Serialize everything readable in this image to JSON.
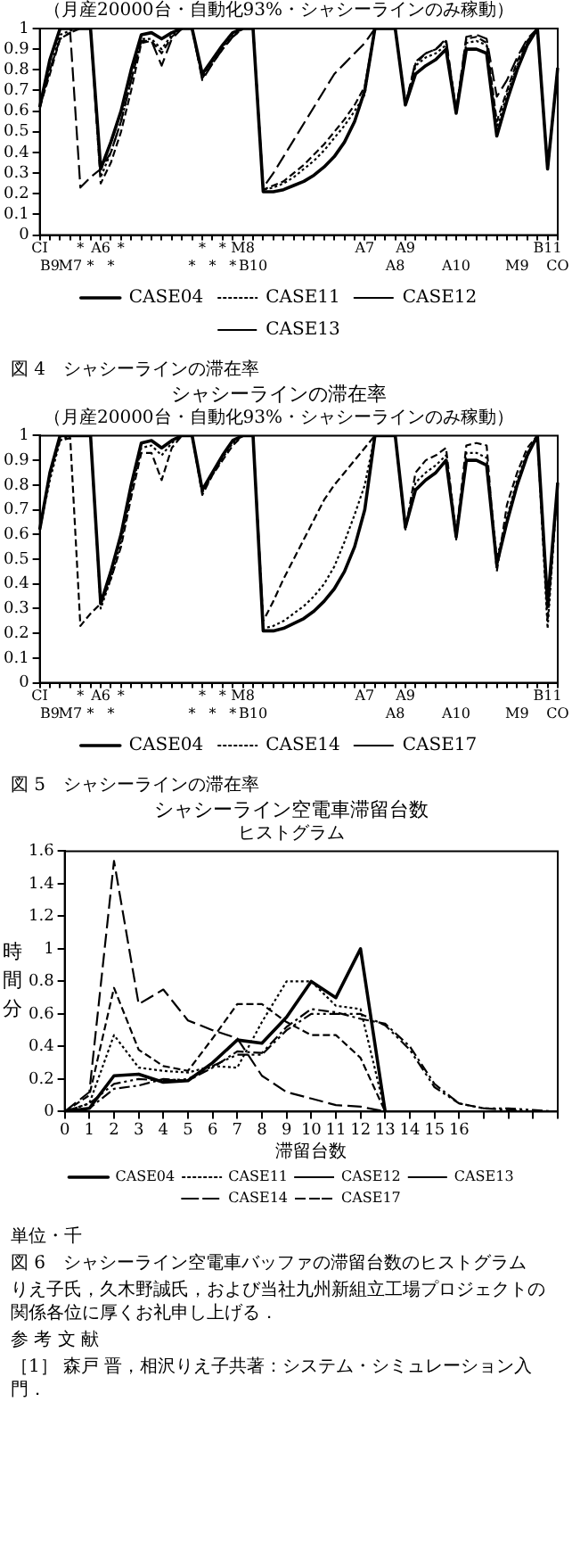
{
  "chart_data": [
    {
      "type": "line",
      "subtitle": "（月産20000台・自動化93%・シャシーラインのみ稼動）",
      "categories": [
        "CI",
        "B9",
        null,
        "M7",
        "*",
        "*",
        "A6",
        "*",
        "*",
        null,
        null,
        null,
        null,
        null,
        null,
        "*",
        "*",
        "*",
        "*",
        "*",
        "M8",
        "B10",
        null,
        null,
        null,
        null,
        null,
        null,
        null,
        null,
        null,
        null,
        "A7",
        null,
        null,
        "A8",
        "A9",
        null,
        null,
        null,
        null,
        "A10",
        null,
        null,
        null,
        null,
        null,
        "M9",
        null,
        null,
        "B11",
        "CO"
      ],
      "series": [
        {
          "name": "CASE04",
          "color": "#000000",
          "line_style": "solid",
          "values": [
            0.62,
            0.85,
            1,
            1,
            1,
            1,
            0.32,
            0.45,
            0.6,
            0.8,
            0.97,
            0.98,
            0.95,
            0.98,
            1,
            1,
            0.78,
            0.85,
            0.92,
            0.98,
            1,
            1,
            0.21,
            0.21,
            0.22,
            0.24,
            0.26,
            0.29,
            0.33,
            0.38,
            0.45,
            0.55,
            0.7,
            1,
            1,
            1,
            0.63,
            0.78,
            0.82,
            0.85,
            0.9,
            0.59,
            0.9,
            0.9,
            0.88,
            0.48,
            0.65,
            0.8,
            0.92,
            1,
            0.32,
            0.81
          ]
        },
        {
          "name": "CASE11",
          "color": "#000000",
          "line_style": "dotted",
          "values": [
            0.62,
            0.8,
            0.97,
            0.99,
            1,
            1,
            0.28,
            0.4,
            0.55,
            0.75,
            0.95,
            0.95,
            0.9,
            0.97,
            1,
            1,
            0.77,
            0.84,
            0.91,
            0.97,
            1,
            1,
            0.22,
            0.23,
            0.25,
            0.28,
            0.32,
            0.36,
            0.41,
            0.47,
            0.53,
            0.6,
            0.68,
            1,
            1,
            1,
            0.63,
            0.82,
            0.86,
            0.88,
            0.92,
            0.6,
            0.93,
            0.94,
            0.92,
            0.52,
            0.68,
            0.82,
            0.93,
            1,
            0.32,
            0.81
          ]
        },
        {
          "name": "CASE12",
          "color": "#000000",
          "line_style": "dashed",
          "values": [
            0.62,
            0.78,
            0.95,
            0.98,
            1,
            1,
            0.25,
            0.35,
            0.5,
            0.7,
            0.93,
            0.94,
            0.88,
            0.96,
            1,
            1,
            0.76,
            0.83,
            0.9,
            0.96,
            1,
            1,
            0.22,
            0.24,
            0.26,
            0.3,
            0.34,
            0.39,
            0.44,
            0.5,
            0.56,
            0.63,
            0.72,
            1,
            1,
            1,
            0.63,
            0.83,
            0.88,
            0.9,
            0.94,
            0.6,
            0.95,
            0.96,
            0.93,
            0.55,
            0.7,
            0.84,
            0.94,
            1,
            0.32,
            0.81
          ]
        },
        {
          "name": "CASE13",
          "color": "#000000",
          "line_style": "longdash",
          "values": [
            0.62,
            0.8,
            0.95,
            0.98,
            0.23,
            0.28,
            0.32,
            0.4,
            0.55,
            0.75,
            0.94,
            0.94,
            0.82,
            0.95,
            1,
            1,
            0.75,
            0.83,
            0.9,
            0.96,
            1,
            1,
            0.23,
            0.3,
            0.38,
            0.46,
            0.54,
            0.62,
            0.7,
            0.78,
            0.83,
            0.88,
            0.93,
            1,
            1,
            1,
            0.63,
            0.84,
            0.88,
            0.9,
            0.95,
            0.6,
            0.96,
            0.97,
            0.95,
            0.67,
            0.75,
            0.86,
            0.95,
            1,
            0.32,
            0.81
          ]
        }
      ],
      "ylim": [
        0,
        1
      ],
      "yticks": [
        0,
        0.1,
        0.2,
        0.3,
        0.4,
        0.5,
        0.6,
        0.7,
        0.8,
        0.9,
        1
      ],
      "grid": false,
      "legend": "bottom",
      "annotations": [
        "図 4　シャシーラインの滞在率"
      ]
    },
    {
      "type": "line",
      "title": "シャシーラインの滞在率",
      "subtitle": "（月産20000台・自動化93%・シャシーラインのみ稼動）",
      "categories": [
        "CI",
        "B9",
        null,
        "M7",
        "*",
        "*",
        "A6",
        "*",
        "*",
        null,
        null,
        null,
        null,
        null,
        null,
        "*",
        "*",
        "*",
        "*",
        "*",
        "M8",
        "B10",
        null,
        null,
        null,
        null,
        null,
        null,
        null,
        null,
        null,
        null,
        "A7",
        null,
        null,
        "A8",
        "A9",
        null,
        null,
        null,
        null,
        "A10",
        null,
        null,
        null,
        null,
        null,
        "M9",
        null,
        null,
        "B11",
        "CO"
      ],
      "series": [
        {
          "name": "CASE04",
          "color": "#000000",
          "line_style": "solid",
          "values": [
            0.62,
            0.85,
            1,
            1,
            1,
            1,
            0.32,
            0.45,
            0.6,
            0.8,
            0.97,
            0.98,
            0.95,
            0.98,
            1,
            1,
            0.78,
            0.85,
            0.92,
            0.98,
            1,
            1,
            0.21,
            0.21,
            0.22,
            0.24,
            0.26,
            0.29,
            0.33,
            0.38,
            0.45,
            0.55,
            0.7,
            1,
            1,
            1,
            0.63,
            0.78,
            0.82,
            0.85,
            0.9,
            0.59,
            0.9,
            0.9,
            0.88,
            0.48,
            0.65,
            0.8,
            0.92,
            1,
            0.32,
            0.81
          ]
        },
        {
          "name": "CASE14",
          "color": "#000000",
          "line_style": "dotted",
          "values": [
            0.62,
            0.82,
            0.98,
            1,
            1,
            1,
            0.3,
            0.42,
            0.57,
            0.77,
            0.95,
            0.96,
            0.92,
            0.97,
            1,
            1,
            0.77,
            0.84,
            0.91,
            0.97,
            1,
            1,
            0.22,
            0.23,
            0.25,
            0.28,
            0.31,
            0.35,
            0.4,
            0.47,
            0.57,
            0.68,
            0.8,
            1,
            1,
            1,
            0.62,
            0.81,
            0.85,
            0.88,
            0.92,
            0.58,
            0.93,
            0.93,
            0.91,
            0.5,
            0.67,
            0.82,
            0.93,
            1,
            0.22,
            0.81
          ]
        },
        {
          "name": "CASE17",
          "color": "#000000",
          "line_style": "dashed",
          "values": [
            0.62,
            0.85,
            0.98,
            0.99,
            0.23,
            0.28,
            0.32,
            0.42,
            0.55,
            0.75,
            0.93,
            0.93,
            0.82,
            0.95,
            1,
            1,
            0.76,
            0.84,
            0.9,
            0.96,
            1,
            1,
            0.25,
            0.33,
            0.42,
            0.5,
            0.58,
            0.66,
            0.74,
            0.8,
            0.85,
            0.9,
            0.95,
            1,
            1,
            1,
            0.62,
            0.85,
            0.9,
            0.92,
            0.95,
            0.6,
            0.96,
            0.97,
            0.96,
            0.45,
            0.72,
            0.85,
            0.95,
            1,
            0.25,
            0.81
          ]
        }
      ],
      "ylim": [
        0,
        1
      ],
      "yticks": [
        0,
        0.1,
        0.2,
        0.3,
        0.4,
        0.5,
        0.6,
        0.7,
        0.8,
        0.9,
        1
      ],
      "grid": false,
      "legend": "bottom",
      "annotations": [
        "図 5　シャシーラインの滞在率"
      ]
    },
    {
      "type": "line",
      "title": "シャシーライン空電車滞留台数",
      "subtitle": "ヒストグラム",
      "xlabel": "滞留台数",
      "ylabel": "時間分",
      "x": [
        0,
        1,
        2,
        3,
        4,
        5,
        6,
        7,
        8,
        9,
        10,
        11,
        12,
        13,
        14,
        15,
        16,
        17,
        18,
        19,
        20
      ],
      "series": [
        {
          "name": "CASE04",
          "color": "#000000",
          "line_style": "solid",
          "values": [
            0,
            0.02,
            0.22,
            0.23,
            0.18,
            0.19,
            0.3,
            0.44,
            0.42,
            0.58,
            0.8,
            0.7,
            1,
            0,
            null,
            null,
            null,
            null,
            null,
            null,
            null
          ]
        },
        {
          "name": "CASE11",
          "color": "#000000",
          "line_style": "dotted",
          "values": [
            0,
            0.05,
            0.47,
            0.27,
            0.25,
            0.24,
            0.28,
            0.27,
            0.55,
            0.8,
            0.8,
            0.65,
            0.63,
            0,
            null,
            null,
            null,
            null,
            null,
            null,
            null
          ]
        },
        {
          "name": "CASE12",
          "color": "#000000",
          "line_style": "dashed",
          "values": [
            0,
            0.1,
            0.76,
            0.38,
            0.28,
            0.25,
            0.45,
            0.66,
            0.66,
            0.55,
            0.47,
            0.47,
            0.33,
            0,
            null,
            null,
            null,
            null,
            null,
            null,
            null
          ]
        },
        {
          "name": "CASE13",
          "color": "#000000",
          "line_style": "longdash",
          "values": [
            0,
            0.12,
            1.54,
            0.66,
            0.75,
            0.56,
            0.5,
            0.45,
            0.22,
            0.12,
            0.08,
            0.04,
            0.03,
            0,
            null,
            null,
            null,
            null,
            null,
            null,
            null
          ]
        },
        {
          "name": "CASE14",
          "color": "#000000",
          "line_style": "dashdot",
          "values": [
            0,
            0.02,
            0.14,
            0.16,
            0.2,
            0.19,
            0.27,
            0.37,
            0.36,
            0.52,
            0.63,
            0.61,
            0.57,
            0.54,
            0.4,
            0.17,
            0.05,
            0.02,
            0.01,
            0,
            0
          ]
        },
        {
          "name": "CASE17",
          "color": "#000000",
          "line_style": "dashdotdot",
          "values": [
            0,
            0.05,
            0.17,
            0.2,
            0.19,
            0.2,
            0.28,
            0.35,
            0.35,
            0.5,
            0.6,
            0.6,
            0.6,
            0.53,
            0.38,
            0.15,
            0.05,
            0.02,
            0.02,
            0.01,
            0
          ]
        }
      ],
      "xlim": [
        0,
        20
      ],
      "xticks": [
        0,
        1,
        2,
        3,
        4,
        5,
        6,
        7,
        8,
        9,
        10,
        11,
        12,
        13,
        14,
        15,
        16,
        {
          "value": 17,
          "label": null
        },
        {
          "value": 18,
          "label": null
        },
        {
          "value": 19,
          "label": null
        },
        {
          "value": 20,
          "label": null
        }
      ],
      "ylim": [
        0,
        1.6
      ],
      "yticks": [
        0,
        0.2,
        0.4,
        0.6,
        0.8,
        1,
        1.2,
        1.4,
        1.6
      ],
      "grid": false,
      "legend": "bottom",
      "annotations": [
        "単位・千",
        "図 6　シャシーライン空電車バッファの滞留台数のヒストグラム",
        "りえ子氏，久木野誠氏，および当社九州新組立工場プロジェクトの関係各位に厚くお礼申し上げる．",
        "参 考 文 献",
        "［1］ 森戸 晋，相沢りえ子共著：システム・シミュレーション入門．"
      ]
    }
  ]
}
